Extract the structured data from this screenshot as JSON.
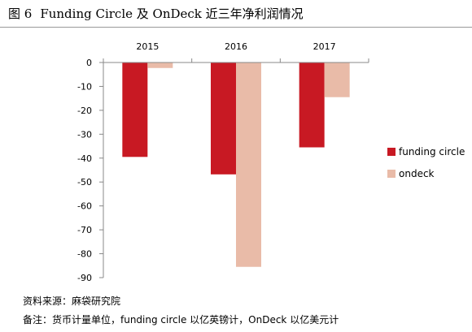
{
  "figure": {
    "number": "图 6",
    "title": "Funding Circle 及 OnDeck 近三年净利润情况"
  },
  "notes": {
    "source": "资料来源：麻袋研究院",
    "remark": "备注：货币计量单位，funding circle 以亿英镑计，OnDeck 以亿美元计"
  },
  "chart_data": {
    "type": "bar",
    "categories": [
      "2015",
      "2016",
      "2017"
    ],
    "series": [
      {
        "name": "funding circle",
        "color": "#c81923",
        "values": [
          -39.5,
          -46.8,
          -35.5
        ]
      },
      {
        "name": "ondeck",
        "color": "#e9bba8",
        "values": [
          -2.3,
          -85.5,
          -14.5
        ]
      }
    ],
    "ylim": [
      -90,
      0
    ],
    "yticks": [
      0,
      -10,
      -20,
      -30,
      -40,
      -50,
      -60,
      -70,
      -80,
      -90
    ],
    "xlabel": "",
    "ylabel": "",
    "category_axis_position": "top",
    "grid": false,
    "legend_position": "right"
  }
}
